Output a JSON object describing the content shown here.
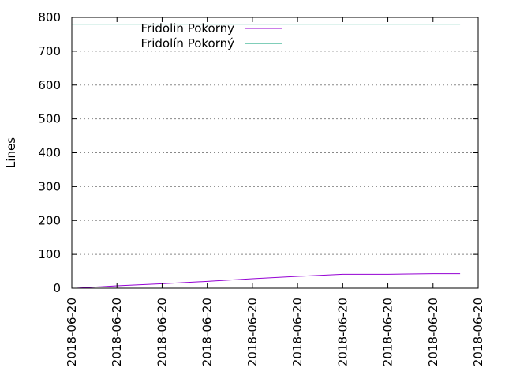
{
  "chart_data": {
    "type": "line",
    "title": "",
    "xlabel": "",
    "ylabel": "Lines",
    "ylim": [
      0,
      800
    ],
    "yticks": [
      0,
      100,
      200,
      300,
      400,
      500,
      600,
      700,
      800
    ],
    "xtick_labels": [
      "2018-06-20",
      "2018-06-20",
      "2018-06-20",
      "2018-06-20",
      "2018-06-20",
      "2018-06-20",
      "2018-06-20",
      "2018-06-20",
      "2018-06-20",
      "2018-06-20"
    ],
    "grid": true,
    "legend_position": "top-left",
    "series": [
      {
        "name": "Fridolin Pokorny",
        "color": "#9400d3",
        "x": [
          0.1,
          1.0,
          2.0,
          3.0,
          4.0,
          5.0,
          6.0,
          7.0,
          8.0,
          8.6
        ],
        "values": [
          0,
          7,
          13,
          20,
          28,
          35,
          41,
          41,
          43,
          43
        ]
      },
      {
        "name": "Fridolín Pokorný",
        "color": "#009e73",
        "x": [
          0.0,
          8.6
        ],
        "values": [
          780,
          780
        ]
      }
    ]
  }
}
